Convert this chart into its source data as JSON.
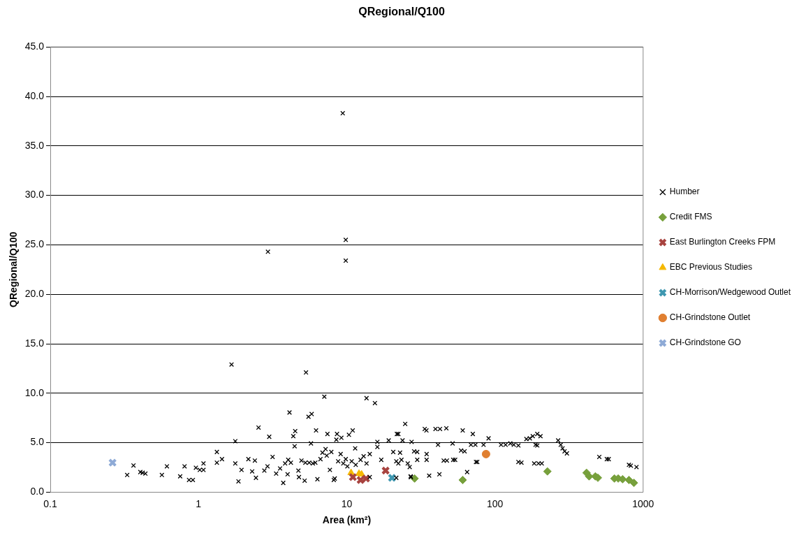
{
  "chart_data": {
    "type": "scatter",
    "title": "QRegional/Q100",
    "xlabel": "Area (km²)",
    "ylabel": "QRegional/Q100",
    "log": "x",
    "xlim": [
      0.1,
      1000
    ],
    "xticks": [
      0.1,
      1,
      10,
      100,
      1000
    ],
    "ylim": [
      0,
      45
    ],
    "yticks": [
      {
        "value": 0,
        "label": "0.0"
      },
      {
        "value": 5,
        "label": "5.0"
      },
      {
        "value": 10,
        "label": "10.0"
      },
      {
        "value": 15,
        "label": "15.0"
      },
      {
        "value": 20,
        "label": "20.0"
      },
      {
        "value": 25,
        "label": "25.0"
      },
      {
        "value": 30,
        "label": "30.0"
      },
      {
        "value": 35,
        "label": "35.0"
      },
      {
        "value": 40,
        "label": "40.0"
      },
      {
        "value": 45,
        "label": "45.0"
      }
    ],
    "grid": "y",
    "legend": "right",
    "series": [
      {
        "name": "Humber",
        "color": "#000000",
        "marker": "cross",
        "x": [
          9.4,
          2.94,
          9.85,
          9.85,
          1.67,
          5.31,
          7.06,
          13.6,
          15.5,
          0.364,
          0.33,
          0.405,
          0.42,
          0.438,
          0.566,
          0.612,
          0.752,
          0.805,
          0.863,
          0.916,
          0.96,
          1.02,
          1.08,
          1.08,
          1.33,
          1.33,
          1.44,
          1.77,
          1.77,
          1.86,
          1.95,
          2.17,
          2.4,
          2.3,
          2.44,
          2.54,
          3.0,
          2.78,
          2.92,
          3.16,
          3.34,
          3.55,
          3.73,
          3.84,
          3.99,
          4.03,
          4.11,
          4.2,
          4.36,
          4.49,
          4.45,
          4.72,
          4.76,
          4.95,
          5.2,
          5.26,
          5.52,
          5.8,
          5.74,
          5.58,
          5.91,
          6.21,
          6.34,
          6.14,
          6.65,
          6.86,
          7.2,
          7.41,
          7.33,
          7.7,
          7.87,
          8.18,
          8.3,
          8.51,
          8.6,
          8.75,
          9.1,
          9.2,
          9.48,
          9.85,
          10.35,
          10.97,
          10.1,
          11.4,
          10.8,
          11.5,
          12.4,
          13.0,
          13.6,
          14.3,
          14.3,
          16.1,
          16.1,
          17.1,
          19.2,
          20.6,
          21.8,
          21.6,
          24.8,
          22.3,
          23.8,
          27.4,
          22.9,
          23.4,
          22.3,
          25.8,
          26.6,
          27.1,
          28.5,
          29.9,
          29.9,
          33.6,
          34.5,
          34.6,
          34.6,
          36.0,
          39.7,
          42.6,
          47.0,
          41.3,
          42.2,
          45.1,
          47.4,
          52.3,
          53.9,
          51.8,
          60.6,
          59.1,
          62.4,
          64.9,
          70.9,
          68.9,
          73.8,
          74.5,
          76.0,
          83.8,
          90.6,
          110,
          118,
          127,
          134,
          144,
          144,
          151,
          163,
          172,
          180,
          193,
          203,
          188,
          193,
          184,
          197,
          207,
          267,
          278,
          286,
          295,
          306,
          506,
          569,
          586,
          802,
          826,
          902,
          21.6,
          27.0
        ],
        "values": [
          38.3,
          24.3,
          25.5,
          23.4,
          12.9,
          12.1,
          9.65,
          9.5,
          9.0,
          2.7,
          1.74,
          2.03,
          1.96,
          1.88,
          1.74,
          2.61,
          1.6,
          2.61,
          1.23,
          1.23,
          2.47,
          2.25,
          2.9,
          2.25,
          4.06,
          2.98,
          3.34,
          5.15,
          2.9,
          1.09,
          2.25,
          3.34,
          3.19,
          2.1,
          1.45,
          6.53,
          5.6,
          2.18,
          2.61,
          3.56,
          1.88,
          2.4,
          0.94,
          2.9,
          1.81,
          3.27,
          8.05,
          2.98,
          5.66,
          6.17,
          4.64,
          2.18,
          1.52,
          3.19,
          1.16,
          2.98,
          7.62,
          7.9,
          4.93,
          2.98,
          2.9,
          6.24,
          1.31,
          2.98,
          3.34,
          3.99,
          4.35,
          5.88,
          3.7,
          2.25,
          4.06,
          1.23,
          1.38,
          5.3,
          5.88,
          3.12,
          3.85,
          5.5,
          2.9,
          3.34,
          5.8,
          6.24,
          2.61,
          4.43,
          3.12,
          2.76,
          3.27,
          3.63,
          2.9,
          3.85,
          1.52,
          5.08,
          4.57,
          3.27,
          5.23,
          4.06,
          5.88,
          3.12,
          6.9,
          5.88,
          5.23,
          5.08,
          3.99,
          3.27,
          2.9,
          2.9,
          2.54,
          1.52,
          4.13,
          4.06,
          3.27,
          6.39,
          6.24,
          3.85,
          3.27,
          1.67,
          6.39,
          6.39,
          6.46,
          4.79,
          1.81,
          3.19,
          3.19,
          3.27,
          3.27,
          4.93,
          6.24,
          4.21,
          4.13,
          2.03,
          5.88,
          4.79,
          4.79,
          3.05,
          3.05,
          4.79,
          5.44,
          4.79,
          4.79,
          4.93,
          4.79,
          4.72,
          3.05,
          2.98,
          5.37,
          5.44,
          5.66,
          5.88,
          5.66,
          4.79,
          4.72,
          2.9,
          2.9,
          2.9,
          5.23,
          4.79,
          4.43,
          4.13,
          3.92,
          3.56,
          3.34,
          3.34,
          2.76,
          2.68,
          2.54,
          1.45,
          1.6
        ]
      },
      {
        "name": "Credit FMS",
        "color": "#77a03c",
        "marker": "diamond",
        "x": [
          28.7,
          60.6,
          226,
          415,
          432,
          476,
          495,
          640,
          679,
          727,
          802,
          867
        ],
        "values": [
          1.38,
          1.23,
          2.1,
          1.96,
          1.6,
          1.6,
          1.45,
          1.38,
          1.38,
          1.31,
          1.23,
          0.94
        ]
      },
      {
        "name": "East Burlington Creeks FPM",
        "color": "#a8433f",
        "marker": "cross",
        "x": [
          11.0,
          12.4,
          13.5,
          18.3
        ],
        "values": [
          1.52,
          1.23,
          1.38,
          2.18
        ]
      },
      {
        "name": "EBC Previous Studies",
        "color": "#f5b800",
        "marker": "triangle",
        "x": [
          10.7,
          12.1,
          12.6
        ],
        "values": [
          1.96,
          1.88,
          1.81
        ]
      },
      {
        "name": "CH-Morrison/Wedgewood Outlet",
        "color": "#3e97b0",
        "marker": "cross",
        "x": [
          20.2
        ],
        "values": [
          1.45
        ]
      },
      {
        "name": "CH-Grindstone Outlet",
        "color": "#e07f30",
        "marker": "circle",
        "x": [
          87.1
        ],
        "values": [
          3.85
        ]
      },
      {
        "name": "CH-Grindstone GO",
        "color": "#8eaad6",
        "marker": "cross",
        "x": [
          0.263
        ],
        "values": [
          2.98
        ]
      }
    ]
  }
}
